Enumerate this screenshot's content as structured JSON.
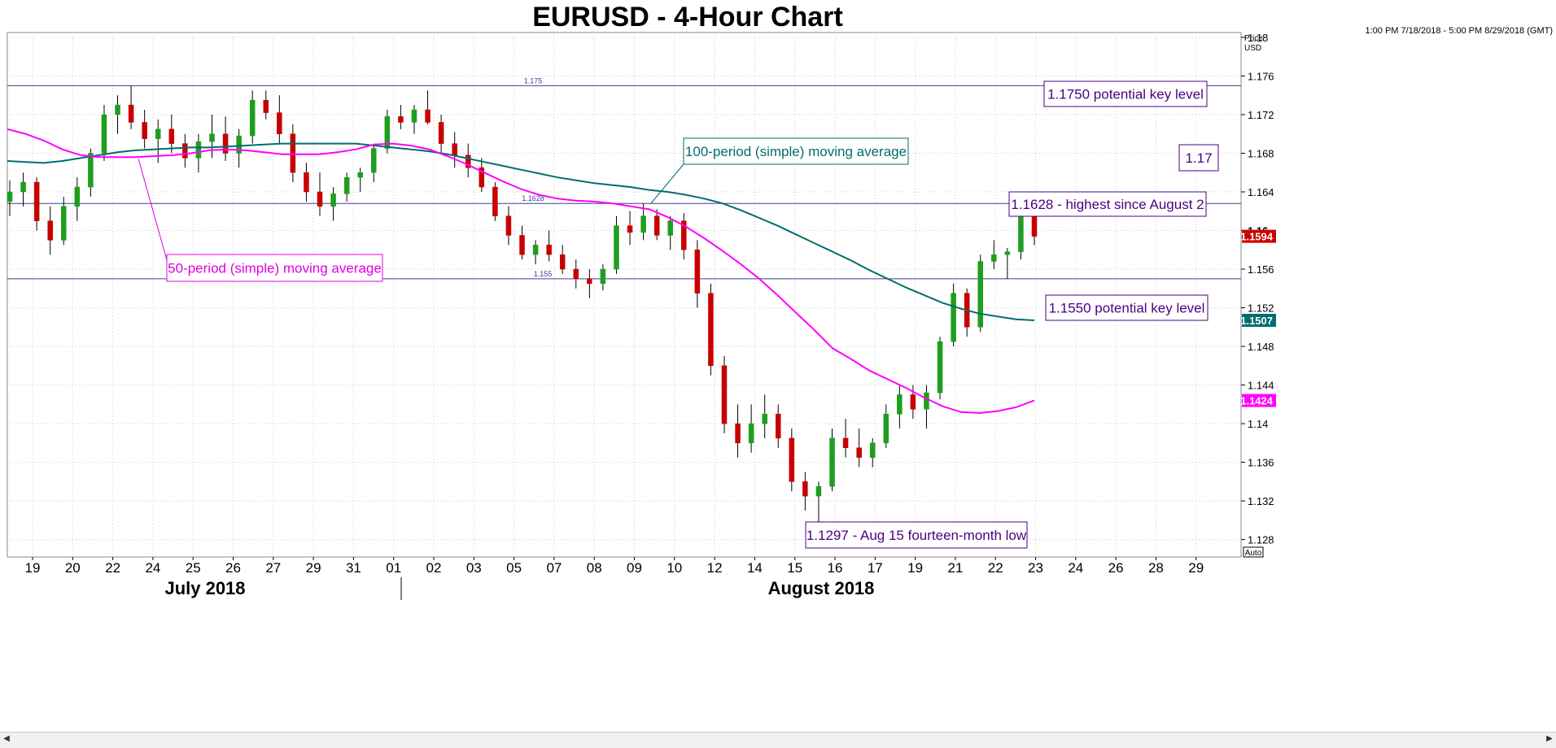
{
  "chart_data": {
    "type": "candlestick",
    "title": "EURUSD - 4-Hour Chart",
    "date_range": "1:00 PM 7/18/2018 - 5:00 PM 8/29/2018 (GMT)",
    "axis_label": {
      "line1": "Price",
      "line2": "USD"
    },
    "ylim": [
      1.1262,
      1.1805
    ],
    "y_ticks": [
      "1.18",
      "1.176",
      "1.172",
      "1.168",
      "1.164",
      "1.16",
      "1.156",
      "1.152",
      "1.148",
      "1.144",
      "1.14",
      "1.136",
      "1.132",
      "1.128"
    ],
    "x_ticks": [
      "19",
      "20",
      "22",
      "24",
      "25",
      "26",
      "27",
      "29",
      "31",
      "01",
      "02",
      "03",
      "05",
      "07",
      "08",
      "09",
      "10",
      "12",
      "14",
      "15",
      "16",
      "17",
      "19",
      "21",
      "22",
      "23",
      "24",
      "26",
      "28",
      "29"
    ],
    "months": [
      "July 2018",
      "August 2018"
    ],
    "auto_label": "Auto",
    "grid": true,
    "horizontal_lines": [
      {
        "value": 1.175,
        "label": "1.175"
      },
      {
        "value": 1.1628,
        "label": "1.1628"
      },
      {
        "value": 1.155,
        "label": "1.155"
      }
    ],
    "price_tags": [
      {
        "value": 1.1594,
        "label": "1.1594",
        "color": "#cc0000"
      },
      {
        "value": 1.1507,
        "label": "1.1507",
        "color": "#006e6e"
      },
      {
        "value": 1.1424,
        "label": "1.1424",
        "color": "#ff00ff"
      }
    ],
    "partial_tick_label": "1.16",
    "annotations": [
      {
        "text": "1.1750 potential key level",
        "color": "#4b0082"
      },
      {
        "text": "1.17",
        "color": "#4b0082"
      },
      {
        "text": "1.1628 - highest since August 2",
        "color": "#4b0082"
      },
      {
        "text": "1.1550 potential key level",
        "color": "#4b0082"
      },
      {
        "text": "1.1297 - Aug 15 fourteen-month low",
        "color": "#4b0082"
      },
      {
        "text": "100-period (simple) moving average",
        "color": "#006e6e"
      },
      {
        "text": "50-period (simple) moving average",
        "color": "#e000e0"
      }
    ],
    "series": [
      {
        "name": "100-period (simple) moving average",
        "color": "#006e6e",
        "values": [
          1.1672,
          1.1671,
          1.167,
          1.1672,
          1.1675,
          1.1678,
          1.1681,
          1.1683,
          1.1684,
          1.1685,
          1.1686,
          1.1686,
          1.1687,
          1.1688,
          1.1689,
          1.169,
          1.169,
          1.169,
          1.169,
          1.169,
          1.1688,
          1.1686,
          1.1684,
          1.1682,
          1.1679,
          1.1675,
          1.1671,
          1.1667,
          1.1663,
          1.1659,
          1.1655,
          1.1652,
          1.1649,
          1.1647,
          1.1645,
          1.1642,
          1.164,
          1.1637,
          1.1633,
          1.1628,
          1.1621,
          1.1613,
          1.1605,
          1.1596,
          1.1587,
          1.1578,
          1.1569,
          1.1559,
          1.155,
          1.1541,
          1.1533,
          1.1525,
          1.1519,
          1.1514,
          1.1511,
          1.1508,
          1.1507
        ]
      },
      {
        "name": "50-period (simple) moving average",
        "color": "#ff00ff",
        "values": [
          1.1705,
          1.17,
          1.1693,
          1.1684,
          1.1678,
          1.1676,
          1.1676,
          1.1676,
          1.1677,
          1.1678,
          1.168,
          1.1683,
          1.1684,
          1.1683,
          1.1681,
          1.1679,
          1.1679,
          1.1679,
          1.1681,
          1.1684,
          1.1689,
          1.169,
          1.1688,
          1.1684,
          1.1677,
          1.1669,
          1.166,
          1.1651,
          1.1643,
          1.1637,
          1.1633,
          1.1631,
          1.163,
          1.1628,
          1.1625,
          1.1622,
          1.1614,
          1.1604,
          1.1592,
          1.1579,
          1.1565,
          1.155,
          1.1533,
          1.1515,
          1.1497,
          1.1478,
          1.1467,
          1.1455,
          1.1446,
          1.1437,
          1.1427,
          1.1418,
          1.1412,
          1.1411,
          1.1413,
          1.1417,
          1.1424
        ]
      }
    ],
    "candles": [
      [
        1.163,
        1.1652,
        1.1615,
        1.164
      ],
      [
        1.164,
        1.166,
        1.1625,
        1.165
      ],
      [
        1.165,
        1.1655,
        1.16,
        1.161
      ],
      [
        1.161,
        1.1625,
        1.1575,
        1.159
      ],
      [
        1.159,
        1.1635,
        1.1585,
        1.1625
      ],
      [
        1.1625,
        1.1655,
        1.161,
        1.1645
      ],
      [
        1.1645,
        1.1685,
        1.1635,
        1.168
      ],
      [
        1.168,
        1.173,
        1.1672,
        1.172
      ],
      [
        1.172,
        1.174,
        1.17,
        1.173
      ],
      [
        1.173,
        1.175,
        1.1705,
        1.1712
      ],
      [
        1.1712,
        1.1725,
        1.1685,
        1.1695
      ],
      [
        1.1695,
        1.1715,
        1.167,
        1.1705
      ],
      [
        1.1705,
        1.172,
        1.168,
        1.169
      ],
      [
        1.169,
        1.17,
        1.1665,
        1.1675
      ],
      [
        1.1675,
        1.17,
        1.166,
        1.1692
      ],
      [
        1.1692,
        1.172,
        1.1675,
        1.17
      ],
      [
        1.17,
        1.1718,
        1.1672,
        1.168
      ],
      [
        1.168,
        1.1705,
        1.1665,
        1.1698
      ],
      [
        1.1698,
        1.1745,
        1.169,
        1.1735
      ],
      [
        1.1735,
        1.1745,
        1.1715,
        1.1722
      ],
      [
        1.1722,
        1.174,
        1.169,
        1.17
      ],
      [
        1.17,
        1.171,
        1.165,
        1.166
      ],
      [
        1.166,
        1.167,
        1.163,
        1.164
      ],
      [
        1.164,
        1.166,
        1.1615,
        1.1625
      ],
      [
        1.1625,
        1.1645,
        1.161,
        1.1638
      ],
      [
        1.1638,
        1.166,
        1.163,
        1.1655
      ],
      [
        1.1655,
        1.1665,
        1.164,
        1.166
      ],
      [
        1.166,
        1.169,
        1.165,
        1.1685
      ],
      [
        1.1685,
        1.1725,
        1.168,
        1.1718
      ],
      [
        1.1718,
        1.173,
        1.1705,
        1.1712
      ],
      [
        1.1712,
        1.173,
        1.17,
        1.1725
      ],
      [
        1.1725,
        1.1745,
        1.171,
        1.1712
      ],
      [
        1.1712,
        1.172,
        1.168,
        1.169
      ],
      [
        1.169,
        1.1702,
        1.1665,
        1.1678
      ],
      [
        1.1678,
        1.169,
        1.1655,
        1.1665
      ],
      [
        1.1665,
        1.1675,
        1.164,
        1.1645
      ],
      [
        1.1645,
        1.165,
        1.161,
        1.1615
      ],
      [
        1.1615,
        1.1625,
        1.1585,
        1.1595
      ],
      [
        1.1595,
        1.1605,
        1.157,
        1.1575
      ],
      [
        1.1575,
        1.159,
        1.1565,
        1.1585
      ],
      [
        1.1585,
        1.16,
        1.1568,
        1.1575
      ],
      [
        1.1575,
        1.1585,
        1.1555,
        1.156
      ],
      [
        1.156,
        1.157,
        1.154,
        1.155
      ],
      [
        1.155,
        1.156,
        1.153,
        1.1545
      ],
      [
        1.1545,
        1.1565,
        1.1538,
        1.156
      ],
      [
        1.156,
        1.1615,
        1.1555,
        1.1605
      ],
      [
        1.1605,
        1.162,
        1.1585,
        1.1598
      ],
      [
        1.1598,
        1.1628,
        1.159,
        1.1615
      ],
      [
        1.1615,
        1.1622,
        1.159,
        1.1595
      ],
      [
        1.1595,
        1.1615,
        1.158,
        1.161
      ],
      [
        1.161,
        1.1618,
        1.157,
        1.158
      ],
      [
        1.158,
        1.159,
        1.152,
        1.1535
      ],
      [
        1.1535,
        1.1545,
        1.145,
        1.146
      ],
      [
        1.146,
        1.147,
        1.139,
        1.14
      ],
      [
        1.14,
        1.142,
        1.1365,
        1.138
      ],
      [
        1.138,
        1.142,
        1.137,
        1.14
      ],
      [
        1.14,
        1.143,
        1.1385,
        1.141
      ],
      [
        1.141,
        1.142,
        1.1375,
        1.1385
      ],
      [
        1.1385,
        1.1395,
        1.133,
        1.134
      ],
      [
        1.134,
        1.135,
        1.131,
        1.1325
      ],
      [
        1.1325,
        1.134,
        1.1297,
        1.1335
      ],
      [
        1.1335,
        1.1395,
        1.133,
        1.1385
      ],
      [
        1.1385,
        1.1405,
        1.1365,
        1.1375
      ],
      [
        1.1375,
        1.1395,
        1.1355,
        1.1365
      ],
      [
        1.1365,
        1.1385,
        1.1355,
        1.138
      ],
      [
        1.138,
        1.142,
        1.1375,
        1.141
      ],
      [
        1.141,
        1.144,
        1.1395,
        1.143
      ],
      [
        1.143,
        1.144,
        1.1405,
        1.1415
      ],
      [
        1.1415,
        1.144,
        1.1395,
        1.1432
      ],
      [
        1.1432,
        1.149,
        1.1425,
        1.1485
      ],
      [
        1.1485,
        1.1545,
        1.148,
        1.1535
      ],
      [
        1.1535,
        1.154,
        1.149,
        1.15
      ],
      [
        1.15,
        1.1575,
        1.1495,
        1.1568
      ],
      [
        1.1568,
        1.159,
        1.156,
        1.1575
      ],
      [
        1.1575,
        1.1582,
        1.155,
        1.1578
      ],
      [
        1.1578,
        1.1628,
        1.157,
        1.162
      ],
      [
        1.162,
        1.1625,
        1.1585,
        1.1594
      ]
    ]
  }
}
